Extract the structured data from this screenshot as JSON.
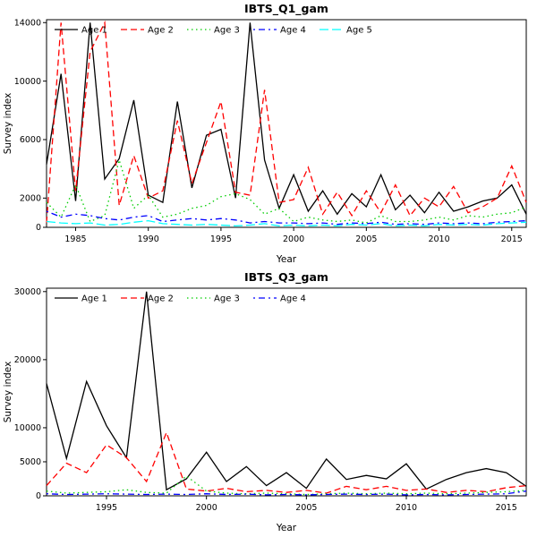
{
  "page": {
    "background": "#ffffff"
  },
  "chart_data": [
    {
      "type": "line",
      "title": "IBTS_Q1_gam",
      "xlabel": "Year",
      "ylabel": "Survey index",
      "xlim": [
        1983,
        2016
      ],
      "ylim": [
        0,
        14200
      ],
      "xticks": [
        1985,
        1990,
        1995,
        2000,
        2005,
        2010,
        2015
      ],
      "yticks": [
        0,
        2000,
        6000,
        10000,
        14000
      ],
      "grid": false,
      "legend_position": "top-left-horizontal",
      "x": [
        1983,
        1984,
        1985,
        1986,
        1987,
        1988,
        1989,
        1990,
        1991,
        1992,
        1993,
        1994,
        1995,
        1996,
        1997,
        1998,
        1999,
        2000,
        2001,
        2002,
        2003,
        2004,
        2005,
        2006,
        2007,
        2008,
        2009,
        2010,
        2011,
        2012,
        2013,
        2014,
        2015,
        2016
      ],
      "series": [
        {
          "name": "Age 1",
          "color": "#000000",
          "dash": "solid",
          "values": [
            4300,
            10500,
            1800,
            14000,
            3300,
            4700,
            8700,
            2200,
            1700,
            8600,
            2700,
            6300,
            6700,
            2000,
            14000,
            4600,
            1300,
            3600,
            1100,
            2500,
            900,
            2300,
            1400,
            3600,
            1200,
            2200,
            1000,
            2400,
            1100,
            1400,
            1800,
            2000,
            2900,
            900
          ]
        },
        {
          "name": "Age 2",
          "color": "#ff0000",
          "dash": "dashed",
          "values": [
            300,
            14000,
            2500,
            12000,
            14000,
            1500,
            4900,
            2000,
            2500,
            7300,
            3000,
            5800,
            8600,
            2400,
            2200,
            9400,
            1700,
            1900,
            4100,
            900,
            2400,
            800,
            2500,
            1000,
            2900,
            800,
            2000,
            1400,
            2800,
            1000,
            1400,
            2000,
            4200,
            1700
          ]
        },
        {
          "name": "Age 3",
          "color": "#00cd00",
          "dash": "dotted",
          "values": [
            1700,
            700,
            2900,
            400,
            800,
            4600,
            1300,
            2200,
            700,
            900,
            1300,
            1500,
            2100,
            2300,
            1900,
            900,
            1300,
            400,
            700,
            500,
            400,
            500,
            300,
            800,
            400,
            400,
            500,
            700,
            500,
            800,
            700,
            900,
            1000,
            1400
          ]
        },
        {
          "name": "Age 4",
          "color": "#0000ff",
          "dash": "dotdash",
          "values": [
            1100,
            700,
            900,
            800,
            600,
            500,
            700,
            800,
            400,
            500,
            600,
            500,
            600,
            500,
            300,
            400,
            300,
            300,
            250,
            300,
            200,
            300,
            250,
            350,
            200,
            250,
            200,
            300,
            250,
            300,
            250,
            350,
            400,
            450
          ]
        },
        {
          "name": "Age 5",
          "color": "#00ffff",
          "dash": "longdash",
          "values": [
            400,
            300,
            250,
            300,
            150,
            200,
            350,
            450,
            250,
            200,
            150,
            200,
            150,
            100,
            150,
            250,
            100,
            150,
            100,
            150,
            100,
            200,
            150,
            250,
            100,
            150,
            100,
            200,
            150,
            200,
            150,
            250,
            300,
            350
          ]
        }
      ]
    },
    {
      "type": "line",
      "title": "IBTS_Q3_gam",
      "xlabel": "Year",
      "ylabel": "Survey index",
      "xlim": [
        1992,
        2016
      ],
      "ylim": [
        0,
        30500
      ],
      "xticks": [
        1995,
        2000,
        2005,
        2010,
        2015
      ],
      "yticks": [
        0,
        5000,
        10000,
        20000,
        30000
      ],
      "grid": false,
      "legend_position": "top-left-horizontal",
      "x": [
        1992,
        1993,
        1994,
        1995,
        1996,
        1997,
        1998,
        1999,
        2000,
        2001,
        2002,
        2003,
        2004,
        2005,
        2006,
        2007,
        2008,
        2009,
        2010,
        2011,
        2012,
        2013,
        2014,
        2015,
        2016
      ],
      "series": [
        {
          "name": "Age 1",
          "color": "#000000",
          "dash": "solid",
          "values": [
            16500,
            5500,
            16800,
            10300,
            5600,
            30000,
            900,
            2500,
            6400,
            2100,
            4300,
            1500,
            3400,
            1100,
            5400,
            2400,
            3000,
            2500,
            4700,
            1000,
            2400,
            3400,
            4000,
            3400,
            1400
          ]
        },
        {
          "name": "Age 2",
          "color": "#ff0000",
          "dash": "dashed",
          "values": [
            1500,
            4800,
            3400,
            7500,
            5600,
            2100,
            9300,
            1000,
            700,
            1100,
            600,
            800,
            500,
            800,
            400,
            1400,
            900,
            1400,
            800,
            1000,
            500,
            800,
            600,
            1200,
            1500
          ]
        },
        {
          "name": "Age 3",
          "color": "#00cd00",
          "dash": "dotted",
          "values": [
            700,
            400,
            500,
            600,
            900,
            500,
            400,
            2900,
            700,
            400,
            300,
            400,
            300,
            200,
            300,
            400,
            300,
            400,
            300,
            400,
            300,
            400,
            500,
            600,
            800
          ]
        },
        {
          "name": "Age 4",
          "color": "#0000ff",
          "dash": "dotdash",
          "values": [
            300,
            200,
            250,
            300,
            250,
            200,
            250,
            200,
            300,
            200,
            250,
            150,
            200,
            150,
            200,
            250,
            200,
            250,
            150,
            200,
            150,
            200,
            250,
            300,
            700
          ]
        }
      ]
    }
  ]
}
